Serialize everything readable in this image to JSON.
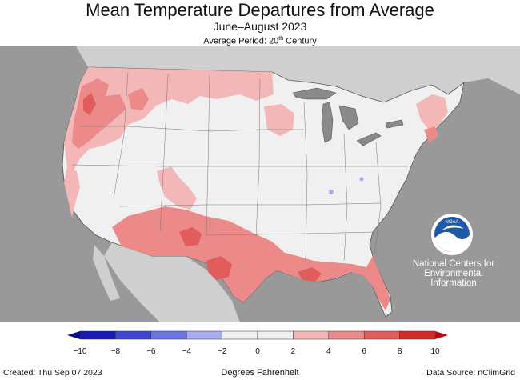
{
  "title": "Mean Temperature Departures from Average",
  "subtitle": "June–August 2023",
  "average_period": {
    "prefix": "Average Period: 20",
    "suffix": "th",
    "rest": " Century"
  },
  "logo": {
    "name": "NOAA",
    "org_lines": [
      "National Centers for",
      "Environmental",
      "Information"
    ]
  },
  "legend": {
    "units": "Degrees Fahrenheit",
    "ticks": [
      "−10",
      "−8",
      "−6",
      "−4",
      "−2",
      "0",
      "2",
      "4",
      "6",
      "8",
      "10"
    ],
    "colors": [
      "#1a1ab8",
      "#3d46d6",
      "#6a74e4",
      "#a7abf0",
      "#f0f0f0",
      "#f0f0f0",
      "#f4b7b7",
      "#ec8a8a",
      "#e25c5c",
      "#d32a2a"
    ]
  },
  "footer": {
    "created": "Created: Thu Sep 07 2023",
    "source": "Data Source: nClimGrid"
  },
  "colors": {
    "ocean": "#999999",
    "land_neutral": "#f0f0f0",
    "warm_light": "#f4b7b7",
    "warm_mid": "#ec8a8a",
    "warm_strong": "#e25c5c",
    "cool_light": "#a7abf0",
    "lake": "#8a8a8a"
  }
}
